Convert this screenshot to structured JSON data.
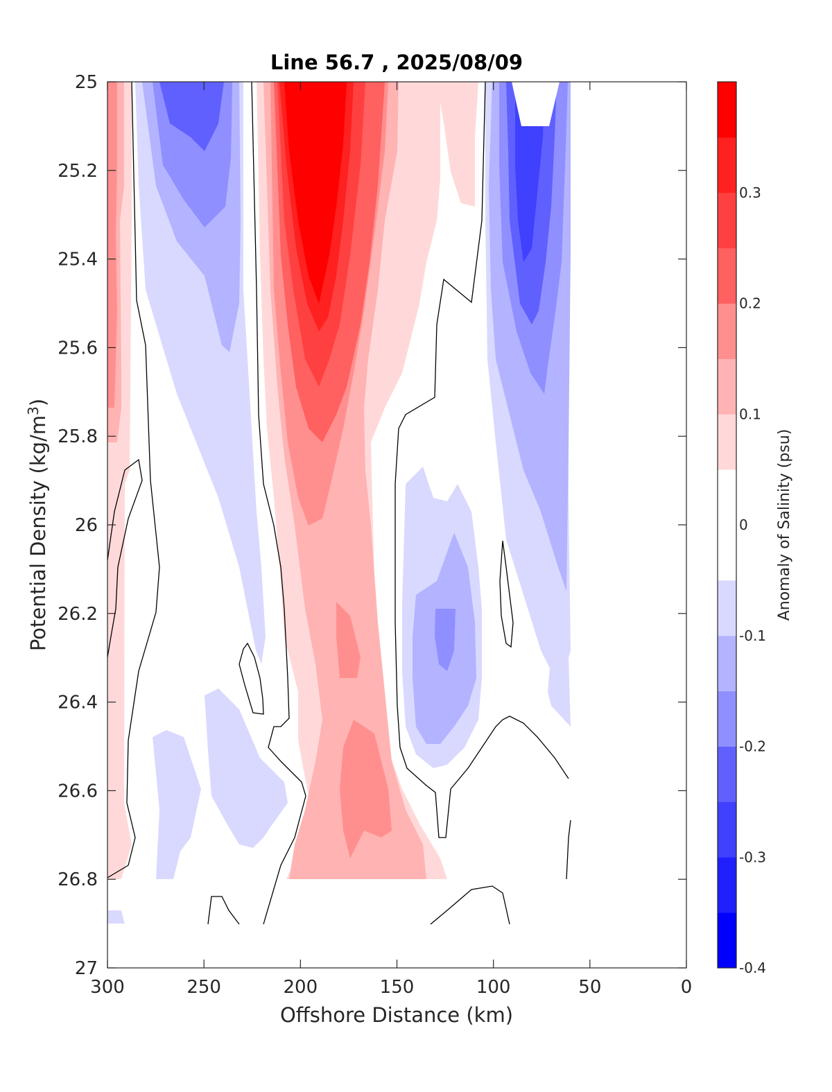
{
  "chart_data": {
    "type": "heatmap",
    "title": "Line 56.7 , 2025/08/09",
    "xlabel": "Offshore Distance (km)",
    "ylabel_main": "Potential Density (kg/m",
    "ylabel_sup": "3",
    "ylabel_end": ")",
    "xlim": [
      300,
      0
    ],
    "ylim": [
      25,
      27
    ],
    "x_reversed": true,
    "y_reversed": true,
    "xticks": [
      300,
      250,
      200,
      150,
      100,
      50,
      0
    ],
    "yticks": [
      25,
      25.2,
      25.4,
      25.6,
      25.8,
      26,
      26.2,
      26.4,
      26.6,
      26.8,
      27
    ],
    "colorbar": {
      "label": "Anomaly of Salinity (psu)",
      "range": [
        -0.4,
        0.4
      ],
      "ticks": [
        -0.4,
        -0.3,
        -0.2,
        -0.1,
        0,
        0.1,
        0.2,
        0.3
      ],
      "levels": [
        {
          "from": -0.4,
          "to": -0.35,
          "color": "#0000ff"
        },
        {
          "from": -0.35,
          "to": -0.3,
          "color": "#2020ff"
        },
        {
          "from": -0.3,
          "to": -0.25,
          "color": "#4040ff"
        },
        {
          "from": -0.25,
          "to": -0.2,
          "color": "#6060ff"
        },
        {
          "from": -0.2,
          "to": -0.15,
          "color": "#8f8fff"
        },
        {
          "from": -0.15,
          "to": -0.1,
          "color": "#b3b3ff"
        },
        {
          "from": -0.1,
          "to": -0.05,
          "color": "#d9d9ff"
        },
        {
          "from": -0.05,
          "to": 0.05,
          "color": "#ffffff"
        },
        {
          "from": 0.05,
          "to": 0.1,
          "color": "#ffd9d9"
        },
        {
          "from": 0.1,
          "to": 0.15,
          "color": "#ffb3b3"
        },
        {
          "from": 0.15,
          "to": 0.2,
          "color": "#ff8f8f"
        },
        {
          "from": 0.2,
          "to": 0.25,
          "color": "#ff6060"
        },
        {
          "from": 0.25,
          "to": 0.3,
          "color": "#ff4040"
        },
        {
          "from": 0.3,
          "to": 0.35,
          "color": "#ff2020"
        },
        {
          "from": 0.35,
          "to": 0.4,
          "color": "#ff0000"
        }
      ]
    },
    "data_extent": {
      "x": [
        300,
        60
      ],
      "y": [
        25,
        26.9
      ]
    },
    "anomaly_features": [
      {
        "name": "nearshore-negative-core",
        "x": [
          82,
          70
        ],
        "y": [
          25.0,
          25.6
        ],
        "value": -0.26
      },
      {
        "name": "mid-negative-lens",
        "x": [
          150,
          100
        ],
        "y": [
          25.85,
          26.55
        ],
        "value": -0.17
      },
      {
        "name": "offshore-negative-core",
        "x": [
          280,
          225
        ],
        "y": [
          25.0,
          25.35
        ],
        "value": -0.21
      },
      {
        "name": "positive-core",
        "x": [
          220,
          160
        ],
        "y": [
          25.0,
          25.75
        ],
        "value": 0.38
      },
      {
        "name": "positive-tongue",
        "x": [
          200,
          150
        ],
        "y": [
          25.8,
          26.9
        ],
        "value": 0.18
      },
      {
        "name": "far-offshore-positive-edge",
        "x": [
          300,
          285
        ],
        "y": [
          25.0,
          26.75
        ],
        "value": 0.22
      }
    ]
  }
}
